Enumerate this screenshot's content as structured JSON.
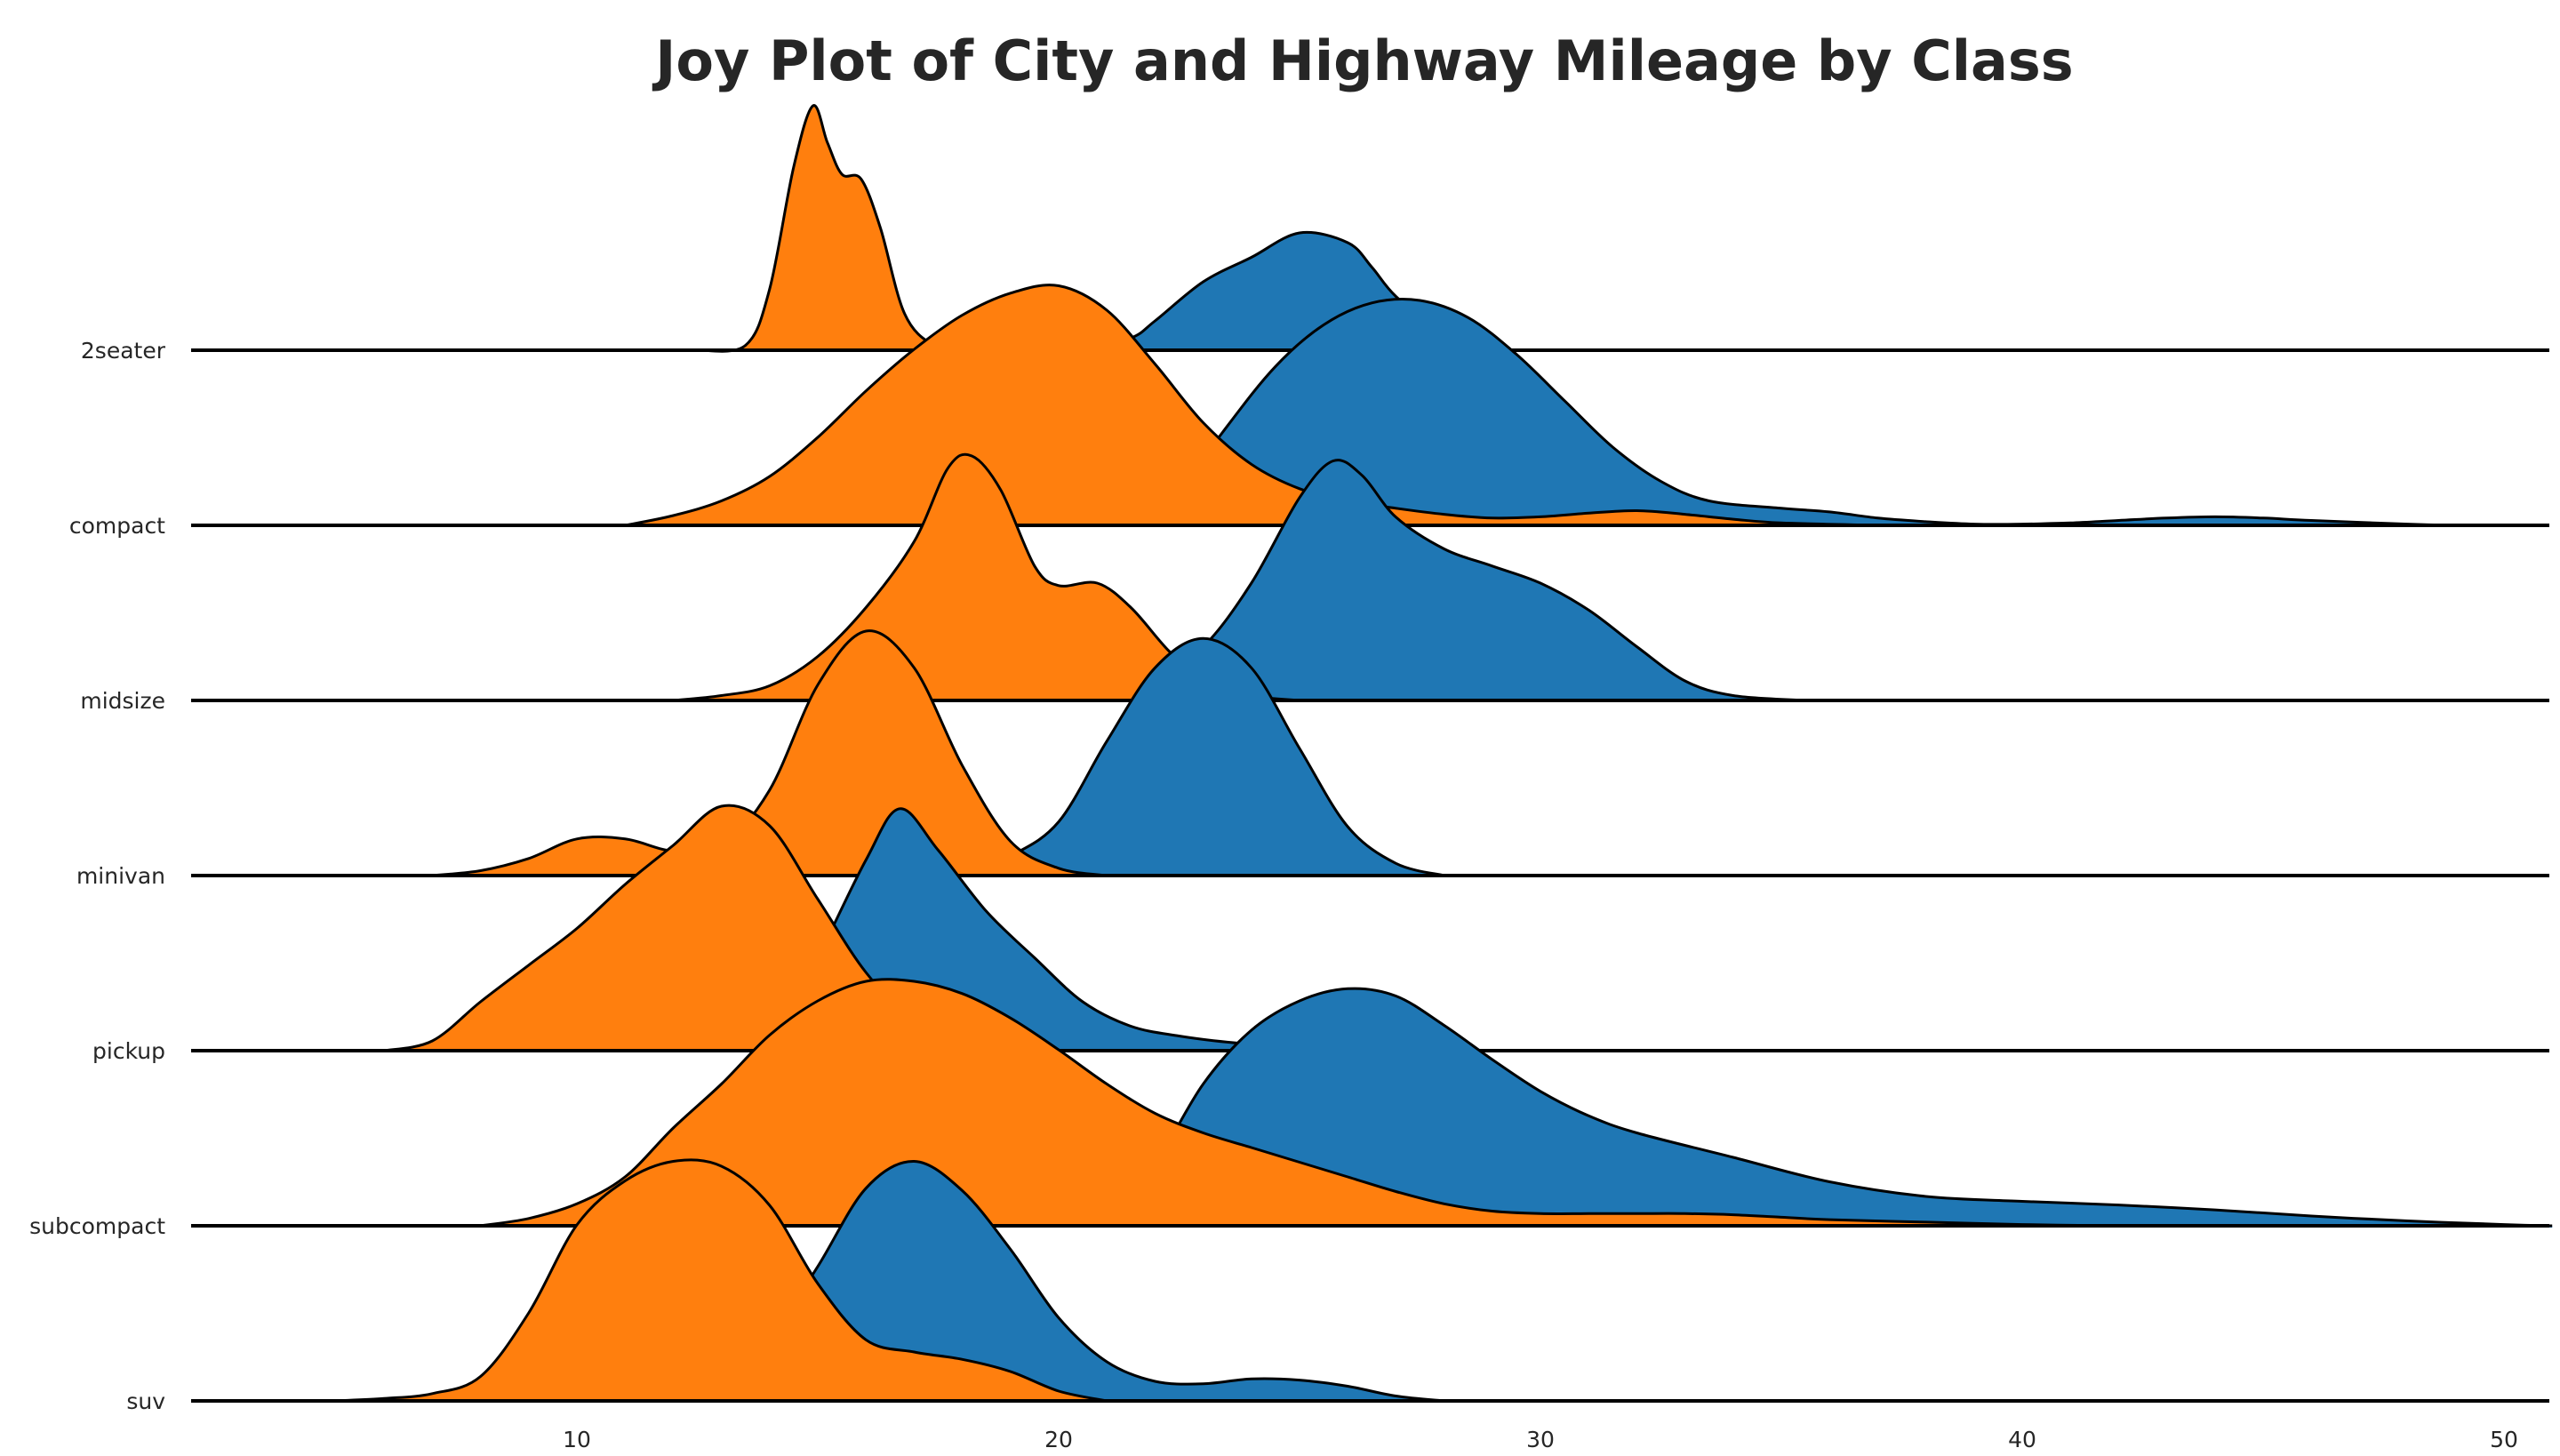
{
  "chart_data": {
    "type": "area",
    "title": "Joy Plot of City and Highway Mileage by Class",
    "xlabel": "",
    "ylabel": "",
    "xlim": [
      2,
      51
    ],
    "x_ticks": [
      "10",
      "20",
      "30",
      "40",
      "50"
    ],
    "grid": false,
    "colors": {
      "hwy": "#1f77b4",
      "cty": "#ff7f0e",
      "outline": "#000000"
    },
    "series_order": [
      "hwy",
      "cty"
    ],
    "categories": [
      "2seater",
      "compact",
      "midsize",
      "minivan",
      "pickup",
      "subcompact",
      "suv"
    ],
    "ridges": [
      {
        "label": "2seater",
        "hwy": [
          [
            20.5,
            0
          ],
          [
            21.5,
            0.05
          ],
          [
            22,
            0.12
          ],
          [
            23,
            0.28
          ],
          [
            24,
            0.38
          ],
          [
            25,
            0.48
          ],
          [
            26,
            0.44
          ],
          [
            26.5,
            0.34
          ],
          [
            27,
            0.22
          ],
          [
            28,
            0.06
          ],
          [
            28.5,
            0
          ]
        ],
        "cty": [
          [
            12.5,
            0
          ],
          [
            13.5,
            0.02
          ],
          [
            14,
            0.25
          ],
          [
            14.5,
            0.75
          ],
          [
            14.9,
            1.0
          ],
          [
            15.2,
            0.85
          ],
          [
            15.5,
            0.72
          ],
          [
            15.9,
            0.7
          ],
          [
            16.3,
            0.5
          ],
          [
            16.8,
            0.15
          ],
          [
            17.4,
            0.02
          ],
          [
            18,
            0
          ]
        ]
      },
      {
        "label": "compact",
        "hwy": [
          [
            22,
            0
          ],
          [
            23.4,
            0.38
          ],
          [
            24.5,
            0.65
          ],
          [
            25.5,
            0.82
          ],
          [
            26.5,
            0.91
          ],
          [
            27.5,
            0.92
          ],
          [
            28.5,
            0.85
          ],
          [
            29.5,
            0.7
          ],
          [
            30.5,
            0.51
          ],
          [
            31.5,
            0.32
          ],
          [
            32.5,
            0.18
          ],
          [
            33.5,
            0.1
          ],
          [
            35,
            0.07
          ],
          [
            36,
            0.055
          ],
          [
            37,
            0.03
          ],
          [
            38,
            0.015
          ],
          [
            39,
            0.005
          ],
          [
            40,
            0.005
          ],
          [
            41,
            0.01
          ],
          [
            42,
            0.02
          ],
          [
            43,
            0.03
          ],
          [
            44,
            0.035
          ],
          [
            45,
            0.03
          ],
          [
            46,
            0.02
          ],
          [
            48,
            0.005
          ],
          [
            49,
            0
          ]
        ],
        "cty": [
          [
            11,
            0
          ],
          [
            12,
            0.04
          ],
          [
            13,
            0.1
          ],
          [
            14,
            0.2
          ],
          [
            15,
            0.36
          ],
          [
            16,
            0.55
          ],
          [
            17,
            0.72
          ],
          [
            18,
            0.86
          ],
          [
            19,
            0.95
          ],
          [
            20,
            0.98
          ],
          [
            21,
            0.88
          ],
          [
            22,
            0.66
          ],
          [
            23,
            0.42
          ],
          [
            24,
            0.25
          ],
          [
            25,
            0.15
          ],
          [
            26,
            0.1
          ],
          [
            27,
            0.07
          ],
          [
            28,
            0.045
          ],
          [
            29,
            0.03
          ],
          [
            30,
            0.035
          ],
          [
            31,
            0.05
          ],
          [
            32,
            0.06
          ],
          [
            33,
            0.045
          ],
          [
            34,
            0.025
          ],
          [
            35,
            0.01
          ],
          [
            37,
            0
          ]
        ]
      },
      {
        "label": "midsize",
        "hwy": [
          [
            20,
            0
          ],
          [
            21,
            0.04
          ],
          [
            22,
            0.1
          ],
          [
            23,
            0.22
          ],
          [
            24,
            0.48
          ],
          [
            25,
            0.83
          ],
          [
            25.7,
            0.98
          ],
          [
            26.3,
            0.92
          ],
          [
            27,
            0.75
          ],
          [
            28,
            0.62
          ],
          [
            29,
            0.55
          ],
          [
            30,
            0.48
          ],
          [
            31,
            0.37
          ],
          [
            32,
            0.22
          ],
          [
            33,
            0.08
          ],
          [
            34,
            0.02
          ],
          [
            35.5,
            0
          ]
        ],
        "cty": [
          [
            12,
            0
          ],
          [
            13,
            0.02
          ],
          [
            14,
            0.06
          ],
          [
            15,
            0.18
          ],
          [
            16,
            0.38
          ],
          [
            17,
            0.65
          ],
          [
            17.7,
            0.95
          ],
          [
            18.2,
            1.0
          ],
          [
            18.8,
            0.86
          ],
          [
            19.5,
            0.55
          ],
          [
            20,
            0.47
          ],
          [
            20.8,
            0.48
          ],
          [
            21.5,
            0.38
          ],
          [
            22.3,
            0.2
          ],
          [
            23,
            0.09
          ],
          [
            24,
            0.02
          ],
          [
            25,
            0
          ]
        ]
      },
      {
        "label": "minivan",
        "hwy": [
          [
            18,
            0
          ],
          [
            19,
            0.08
          ],
          [
            20,
            0.22
          ],
          [
            21,
            0.55
          ],
          [
            22,
            0.85
          ],
          [
            23,
            0.97
          ],
          [
            24,
            0.85
          ],
          [
            25,
            0.52
          ],
          [
            26,
            0.2
          ],
          [
            27,
            0.05
          ],
          [
            28,
            0
          ]
        ],
        "cty": [
          [
            7,
            0
          ],
          [
            8,
            0.02
          ],
          [
            9,
            0.07
          ],
          [
            10,
            0.15
          ],
          [
            11,
            0.15
          ],
          [
            12,
            0.1
          ],
          [
            13,
            0.12
          ],
          [
            14,
            0.35
          ],
          [
            15,
            0.78
          ],
          [
            16,
            1.0
          ],
          [
            17,
            0.85
          ],
          [
            18,
            0.45
          ],
          [
            19,
            0.14
          ],
          [
            20,
            0.03
          ],
          [
            21,
            0
          ]
        ]
      },
      {
        "label": "pickup",
        "hwy": [
          [
            14,
            0
          ],
          [
            15,
            0.38
          ],
          [
            16,
            0.78
          ],
          [
            16.7,
            0.99
          ],
          [
            17.5,
            0.82
          ],
          [
            18.5,
            0.57
          ],
          [
            19.5,
            0.38
          ],
          [
            20.5,
            0.2
          ],
          [
            21.5,
            0.1
          ],
          [
            22.5,
            0.06
          ],
          [
            23.5,
            0.035
          ],
          [
            25,
            0.01
          ],
          [
            26,
            0
          ]
        ],
        "cty": [
          [
            6,
            0
          ],
          [
            7,
            0.04
          ],
          [
            8,
            0.2
          ],
          [
            9,
            0.35
          ],
          [
            10,
            0.5
          ],
          [
            11,
            0.68
          ],
          [
            12,
            0.84
          ],
          [
            13,
            1.0
          ],
          [
            14,
            0.92
          ],
          [
            15,
            0.62
          ],
          [
            16,
            0.32
          ],
          [
            17,
            0.12
          ],
          [
            18,
            0.03
          ],
          [
            19,
            0
          ]
        ]
      },
      {
        "label": "subcompact",
        "hwy": [
          [
            21,
            0
          ],
          [
            22,
            0.25
          ],
          [
            23,
            0.58
          ],
          [
            24,
            0.8
          ],
          [
            25,
            0.92
          ],
          [
            26,
            0.97
          ],
          [
            27,
            0.94
          ],
          [
            28,
            0.82
          ],
          [
            29,
            0.68
          ],
          [
            30,
            0.55
          ],
          [
            31,
            0.45
          ],
          [
            32,
            0.38
          ],
          [
            34,
            0.28
          ],
          [
            36,
            0.18
          ],
          [
            38,
            0.12
          ],
          [
            40,
            0.1
          ],
          [
            42,
            0.085
          ],
          [
            44,
            0.065
          ],
          [
            46,
            0.04
          ],
          [
            48,
            0.02
          ],
          [
            50,
            0.005
          ],
          [
            51,
            0
          ]
        ],
        "cty": [
          [
            8,
            0
          ],
          [
            9,
            0.03
          ],
          [
            10,
            0.09
          ],
          [
            11,
            0.2
          ],
          [
            12,
            0.4
          ],
          [
            13,
            0.58
          ],
          [
            14,
            0.78
          ],
          [
            15,
            0.92
          ],
          [
            16,
            1.0
          ],
          [
            17,
            1.0
          ],
          [
            18,
            0.95
          ],
          [
            19,
            0.85
          ],
          [
            20,
            0.72
          ],
          [
            21,
            0.58
          ],
          [
            22,
            0.46
          ],
          [
            23,
            0.38
          ],
          [
            24,
            0.32
          ],
          [
            25,
            0.26
          ],
          [
            26,
            0.2
          ],
          [
            27,
            0.14
          ],
          [
            28,
            0.09
          ],
          [
            29,
            0.06
          ],
          [
            30,
            0.05
          ],
          [
            31,
            0.05
          ],
          [
            32,
            0.05
          ],
          [
            33,
            0.05
          ],
          [
            34,
            0.045
          ],
          [
            35,
            0.035
          ],
          [
            36,
            0.025
          ],
          [
            38,
            0.015
          ],
          [
            40,
            0.005
          ],
          [
            42,
            0
          ]
        ]
      },
      {
        "label": "suv",
        "hwy": [
          [
            12,
            0
          ],
          [
            13,
            0.06
          ],
          [
            14,
            0.25
          ],
          [
            15,
            0.55
          ],
          [
            16,
            0.87
          ],
          [
            17,
            0.98
          ],
          [
            18,
            0.86
          ],
          [
            19,
            0.62
          ],
          [
            20,
            0.34
          ],
          [
            21,
            0.16
          ],
          [
            22,
            0.08
          ],
          [
            23,
            0.07
          ],
          [
            24,
            0.09
          ],
          [
            25,
            0.085
          ],
          [
            26,
            0.06
          ],
          [
            27,
            0.02
          ],
          [
            28,
            0
          ]
        ],
        "cty": [
          [
            5,
            0
          ],
          [
            6,
            0.01
          ],
          [
            7,
            0.03
          ],
          [
            8,
            0.1
          ],
          [
            9,
            0.36
          ],
          [
            10,
            0.72
          ],
          [
            11,
            0.9
          ],
          [
            12,
            0.98
          ],
          [
            13,
            0.96
          ],
          [
            14,
            0.8
          ],
          [
            15,
            0.48
          ],
          [
            16,
            0.25
          ],
          [
            17,
            0.2
          ],
          [
            18,
            0.17
          ],
          [
            19,
            0.12
          ],
          [
            20,
            0.04
          ],
          [
            21,
            0
          ]
        ]
      }
    ]
  }
}
